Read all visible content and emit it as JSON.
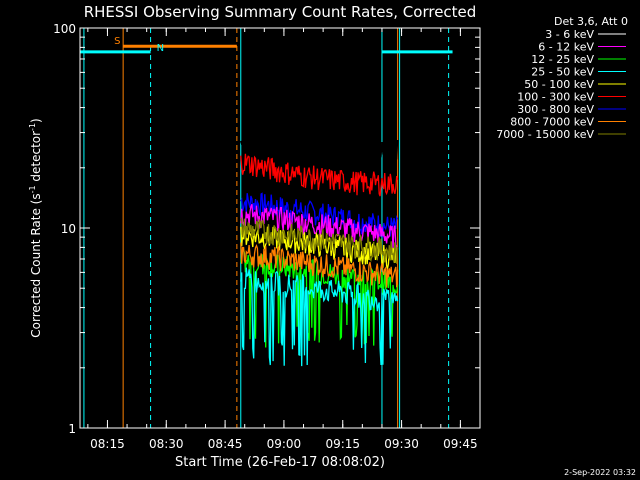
{
  "chart_data": {
    "type": "line",
    "title": "RHESSI Observing Summary Count Rates, Corrected",
    "xlabel": "Start Time (26-Feb-17 08:08:02)",
    "ylabel_main": "Corrected Count Rate (s",
    "ylabel_sup1": "-1",
    "ylabel_mid": " detector",
    "ylabel_sup2": "-1",
    "ylabel_end": ")",
    "yscale": "log",
    "ylim": [
      1,
      100
    ],
    "xlim_minutes": [
      "08:08",
      "09:50"
    ],
    "x_ticks": [
      "08:15",
      "08:30",
      "08:45",
      "09:00",
      "09:15",
      "09:30",
      "09:45"
    ],
    "y_ticks": [
      "1",
      "10",
      "100"
    ],
    "timestamp": "2-Sep-2022 03:32",
    "legend_header": "Det 3,6, Att 0",
    "legend_placement": "right",
    "markers": [
      {
        "label": "S",
        "color": "#ff8000"
      },
      {
        "label": "N",
        "color": "#00ffff"
      }
    ],
    "vertical_lines": [
      {
        "time": "08:09",
        "color": "#00ffff",
        "style": "solid"
      },
      {
        "time": "08:19",
        "color": "#ff8000",
        "style": "solid"
      },
      {
        "time": "08:26",
        "color": "#00ffff",
        "style": "dashed"
      },
      {
        "time": "08:48",
        "color": "#ff8000",
        "style": "dashed"
      },
      {
        "time": "08:49",
        "color": "#00ffff",
        "style": "solid"
      },
      {
        "time": "09:25",
        "color": "#00ffff",
        "style": "solid"
      },
      {
        "time": "09:29",
        "color": "#ff8000",
        "style": "solid"
      },
      {
        "time": "09:29.5",
        "color": "#00ffff",
        "style": "solid"
      },
      {
        "time": "09:42",
        "color": "#00ffff",
        "style": "dashed"
      }
    ],
    "horizontal_bars": [
      {
        "start": "08:08",
        "end": "08:26",
        "value": 76,
        "color": "#00ffff"
      },
      {
        "start": "08:19",
        "end": "08:48",
        "value": 81,
        "color": "#ff8000"
      },
      {
        "start": "09:25",
        "end": "09:43",
        "value": 76,
        "color": "#00ffff"
      }
    ],
    "data_start": "08:49",
    "data_end": "09:29",
    "series": [
      {
        "name": "3 - 6 keV",
        "color": "#000000",
        "level": 26
      },
      {
        "name": "6 - 12 keV",
        "color": "#ff00ff",
        "level": 9.5
      },
      {
        "name": "12 - 25 keV",
        "color": "#00ff00",
        "level": 5.5
      },
      {
        "name": "25 - 50 keV",
        "color": "#00ffff",
        "level": 4.5
      },
      {
        "name": "50 - 100 keV",
        "color": "#ffff00",
        "level": 7.5
      },
      {
        "name": "100 - 300 keV",
        "color": "#ff0000",
        "level": 16
      },
      {
        "name": "300 - 800 keV",
        "color": "#0000ff",
        "level": 10.5
      },
      {
        "name": "800 - 7000 keV",
        "color": "#ff8000",
        "level": 6
      },
      {
        "name": "7000 - 15000 keV",
        "color": "#808000",
        "level": 8
      }
    ]
  }
}
